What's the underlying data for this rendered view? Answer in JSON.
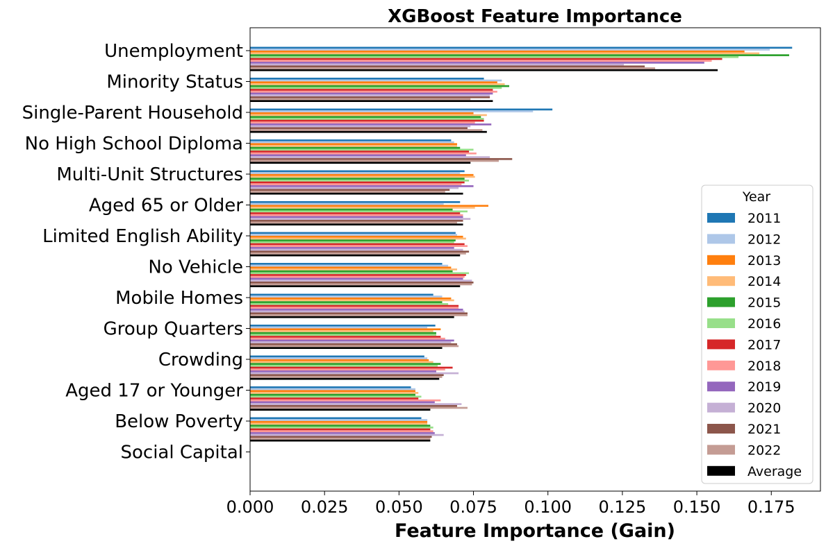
{
  "chart_data": {
    "type": "bar",
    "orientation": "horizontal",
    "title": "XGBoost Feature Importance",
    "xlabel": "Feature Importance (Gain)",
    "ylabel": "",
    "xlim": [
      0,
      0.1915
    ],
    "xticks": [
      "0.000",
      "0.025",
      "0.050",
      "0.075",
      "0.100",
      "0.125",
      "0.150",
      "0.175"
    ],
    "xtick_values": [
      0,
      0.025,
      0.05,
      0.075,
      0.1,
      0.125,
      0.15,
      0.175
    ],
    "grid": false,
    "legend": {
      "title": "Year",
      "placement": "lower-right"
    },
    "categories": [
      "Unemployment",
      "Minority Status",
      "Single-Parent Household",
      "No High School Diploma",
      "Multi-Unit Structures",
      "Aged 65 or Older",
      "Limited English Ability",
      "No Vehicle",
      "Mobile Homes",
      "Group Quarters",
      "Crowding",
      "Aged 17 or Younger",
      "Below Poverty",
      "Social Capital"
    ],
    "series": [
      {
        "name": "2011",
        "color": "#1f77b4",
        "values": [
          0.182,
          0.0785,
          0.1015,
          0.0675,
          0.072,
          0.0705,
          0.069,
          0.0645,
          0.0615,
          0.0622,
          0.0585,
          0.054,
          0.0575,
          0
        ]
      },
      {
        "name": "2012",
        "color": "#aec7e8",
        "values": [
          0.1745,
          0.0845,
          0.095,
          0.0685,
          0.0705,
          0.065,
          0.0695,
          0.0665,
          0.0645,
          0.0595,
          0.0595,
          0.0555,
          0.0595,
          0
        ]
      },
      {
        "name": "2013",
        "color": "#ff7f0e",
        "values": [
          0.166,
          0.083,
          0.075,
          0.0695,
          0.075,
          0.08,
          0.0715,
          0.0675,
          0.0675,
          0.064,
          0.06,
          0.0555,
          0.0595,
          0
        ]
      },
      {
        "name": "2014",
        "color": "#ffbb78",
        "values": [
          0.171,
          0.0855,
          0.0795,
          0.0695,
          0.0755,
          0.0755,
          0.0725,
          0.0695,
          0.0685,
          0.0615,
          0.0615,
          0.0565,
          0.0595,
          0
        ]
      },
      {
        "name": "2015",
        "color": "#2ca02c",
        "values": [
          0.181,
          0.087,
          0.0775,
          0.0705,
          0.072,
          0.068,
          0.069,
          0.068,
          0.0645,
          0.0625,
          0.064,
          0.0555,
          0.0605,
          0
        ]
      },
      {
        "name": "2016",
        "color": "#98df8a",
        "values": [
          0.164,
          0.0845,
          0.0785,
          0.075,
          0.0735,
          0.073,
          0.0685,
          0.0735,
          0.0665,
          0.0625,
          0.063,
          0.0575,
          0.0615,
          0
        ]
      },
      {
        "name": "2017",
        "color": "#d62728",
        "values": [
          0.1585,
          0.0815,
          0.0785,
          0.0735,
          0.072,
          0.0705,
          0.072,
          0.0725,
          0.07,
          0.064,
          0.068,
          0.0565,
          0.0605,
          0
        ]
      },
      {
        "name": "2018",
        "color": "#ff9896",
        "values": [
          0.155,
          0.083,
          0.0755,
          0.076,
          0.071,
          0.0715,
          0.073,
          0.072,
          0.07,
          0.0655,
          0.0655,
          0.064,
          0.0615,
          0
        ]
      },
      {
        "name": "2019",
        "color": "#9467bd",
        "values": [
          0.1525,
          0.0815,
          0.081,
          0.0725,
          0.075,
          0.0715,
          0.0685,
          0.0715,
          0.0715,
          0.0685,
          0.0625,
          0.062,
          0.062,
          0
        ]
      },
      {
        "name": "2020",
        "color": "#c5b0d5",
        "values": [
          0.1255,
          0.0805,
          0.074,
          0.0805,
          0.07,
          0.074,
          0.0715,
          0.0745,
          0.072,
          0.0675,
          0.07,
          0.071,
          0.065,
          0
        ]
      },
      {
        "name": "2021",
        "color": "#8c564b",
        "values": [
          0.1325,
          0.0805,
          0.073,
          0.088,
          0.067,
          0.0715,
          0.0735,
          0.075,
          0.073,
          0.0695,
          0.065,
          0.0695,
          0.061,
          0
        ]
      },
      {
        "name": "2022",
        "color": "#c49c94",
        "values": [
          0.136,
          0.074,
          0.078,
          0.0835,
          0.0655,
          0.0695,
          0.0725,
          0.0745,
          0.073,
          0.07,
          0.0645,
          0.073,
          0.0605,
          0
        ]
      },
      {
        "name": "Average",
        "color": "#000000",
        "values": [
          0.157,
          0.0815,
          0.0795,
          0.074,
          0.0715,
          0.0715,
          0.0705,
          0.0705,
          0.0685,
          0.0645,
          0.0635,
          0.0605,
          0.0605,
          0
        ]
      }
    ]
  }
}
